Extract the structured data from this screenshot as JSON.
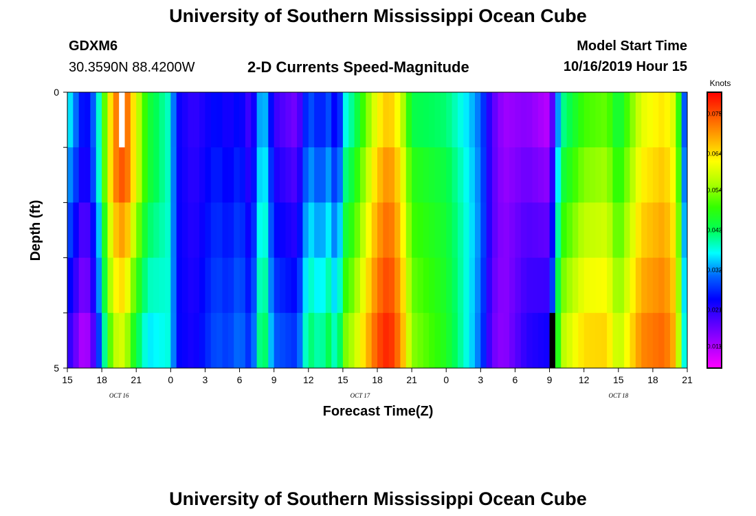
{
  "header": {
    "title": "University of Southern Mississippi Ocean Cube",
    "footer_title": "University of Southern Mississippi Ocean Cube",
    "station": "GDXM6",
    "coordinates": "30.3590N 88.4200W",
    "product": "2-D Currents Speed-Magnitude",
    "model_start_label": "Model Start Time",
    "model_start_value": "10/16/2019 Hour 15"
  },
  "chart_data": {
    "type": "heatmap",
    "xlabel": "Forecast Time(Z)",
    "ylabel": "Depth (ft)",
    "x_ticks": [
      "15",
      "18",
      "21",
      "0",
      "3",
      "6",
      "9",
      "12",
      "15",
      "18",
      "21",
      "0",
      "3",
      "6",
      "9",
      "12",
      "15",
      "18",
      "21"
    ],
    "date_labels": [
      "OCT 16",
      "OCT 17",
      "OCT 18"
    ],
    "y_ticks": [
      "0",
      "5"
    ],
    "ylim": [
      0,
      5
    ],
    "x_hours": {
      "start": 0,
      "end": 54,
      "step": 0.5
    },
    "depth_layers": 5,
    "colorbar": {
      "unit": "Knots",
      "min": 0.005,
      "max": 0.081,
      "labels": [
        "0.075",
        "0.064",
        "0.054",
        "0.043",
        "0.032",
        "0.021",
        "0.011"
      ],
      "stops": [
        "#ff00ff",
        "#aa00ff",
        "#5500ff",
        "#0000ff",
        "#0066ff",
        "#00ffff",
        "#00ff55",
        "#33ff00",
        "#aaff00",
        "#ffff00",
        "#ffaa00",
        "#ff5500",
        "#ff0000"
      ]
    },
    "surface_profile": [
      [
        0,
        0.038
      ],
      [
        1,
        0.028
      ],
      [
        1.5,
        0.022
      ],
      [
        2.5,
        0.032
      ],
      [
        3,
        0.045
      ],
      [
        3.5,
        0.058
      ],
      [
        4,
        0.07
      ],
      [
        5,
        0.076
      ],
      [
        6,
        0.06
      ],
      [
        7,
        0.046
      ],
      [
        8,
        0.042
      ],
      [
        9,
        0.038
      ],
      [
        9.5,
        0.024
      ],
      [
        11,
        0.02
      ],
      [
        13,
        0.025
      ],
      [
        14,
        0.022
      ],
      [
        15,
        0.025
      ],
      [
        16,
        0.018
      ],
      [
        17,
        0.038
      ],
      [
        18,
        0.02
      ],
      [
        20,
        0.015
      ],
      [
        21,
        0.03
      ],
      [
        22,
        0.025
      ],
      [
        23,
        0.03
      ],
      [
        23.5,
        0.018
      ],
      [
        24,
        0.036
      ],
      [
        25,
        0.042
      ],
      [
        26,
        0.052
      ],
      [
        27,
        0.062
      ],
      [
        28,
        0.067
      ],
      [
        29,
        0.06
      ],
      [
        30,
        0.044
      ],
      [
        33,
        0.042
      ],
      [
        35,
        0.035
      ],
      [
        36,
        0.03
      ],
      [
        37,
        0.018
      ],
      [
        38,
        0.012
      ],
      [
        40,
        0.014
      ],
      [
        42,
        0.01
      ],
      [
        43,
        0.04
      ],
      [
        45,
        0.05
      ],
      [
        47,
        0.052
      ],
      [
        48,
        0.044
      ],
      [
        50,
        0.06
      ],
      [
        52,
        0.064
      ],
      [
        53,
        0.058
      ],
      [
        54,
        0.02
      ]
    ],
    "depth_offsets": [
      [
        0,
        -0.004,
        -0.008,
        -0.012,
        -0.016
      ],
      [
        3,
        0.0,
        -0.004,
        -0.006,
        -0.01
      ],
      [
        5.5,
        0.0,
        -0.006,
        -0.012,
        -0.018
      ],
      [
        9,
        0.0,
        0.0,
        0.0,
        0.0
      ],
      [
        24,
        0.004,
        0.008,
        0.012,
        0.016
      ],
      [
        30,
        0.004,
        0.006,
        0.008,
        0.01
      ],
      [
        37,
        0.0,
        0.0,
        -0.001,
        -0.002
      ],
      [
        43,
        0.004,
        0.008,
        0.012,
        0.016
      ],
      [
        54,
        0.002,
        0.004,
        0.006,
        0.008
      ]
    ],
    "markers": [
      {
        "name": "white-marker",
        "hour": 4.5,
        "layer": 0,
        "color": "#ffffff"
      },
      {
        "name": "black-marker",
        "hour": 42,
        "layer": 4,
        "color": "#000000"
      }
    ]
  }
}
